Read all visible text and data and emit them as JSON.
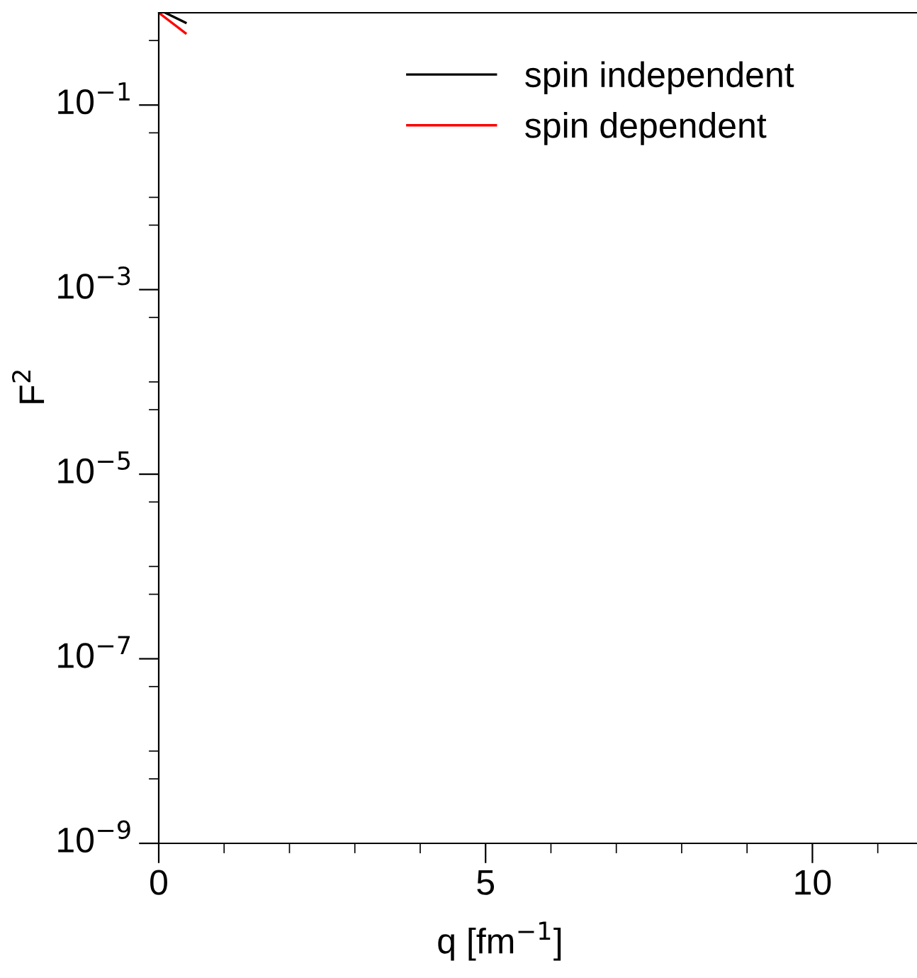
{
  "chart_data": {
    "type": "line",
    "xlabel": "q [fm$^{−1}$]",
    "ylabel": "F$^{2}$",
    "log": "y",
    "legend": "top right",
    "grid": false,
    "xlim": [
      0,
      11.6
    ],
    "ylim": [
      1e-09,
      1
    ],
    "xticks": [
      0,
      {
        "value": 1,
        "label": null
      },
      {
        "value": 2,
        "label": null
      },
      {
        "value": 3,
        "label": null
      },
      {
        "value": 4,
        "label": null
      },
      5,
      {
        "value": 6,
        "label": null
      },
      {
        "value": 7,
        "label": null
      },
      {
        "value": 8,
        "label": null
      },
      {
        "value": 9,
        "label": null
      },
      10,
      {
        "value": 11,
        "label": null
      }
    ],
    "yticks": [
      {
        "value": 1e-09,
        "label": "10$^{−9}$"
      },
      {
        "value": 5e-09,
        "label": null
      },
      {
        "value": 1e-08,
        "label": null
      },
      {
        "value": 5e-08,
        "label": null
      },
      {
        "value": 1e-07,
        "label": "10$^{−7}$"
      },
      {
        "value": 5e-07,
        "label": null
      },
      {
        "value": 1e-06,
        "label": null
      },
      {
        "value": 5e-06,
        "label": null
      },
      {
        "value": 1e-05,
        "label": "10$^{−5}$"
      },
      {
        "value": 5e-05,
        "label": null
      },
      {
        "value": 0.0001,
        "label": null
      },
      {
        "value": 0.0005,
        "label": null
      },
      {
        "value": 0.001,
        "label": "10$^{−3}$"
      },
      {
        "value": 0.005,
        "label": null
      },
      {
        "value": 0.01,
        "label": null
      },
      {
        "value": 0.05,
        "label": null
      },
      {
        "value": 0.1,
        "label": "10$^{−1}$"
      },
      {
        "value": 0.5,
        "label": null
      }
    ],
    "series": [
      {
        "name": "spin independent",
        "color": "#000000",
        "x": [
          0.1,
          0.41
        ],
        "values": [
          1.0,
          0.78
        ]
      },
      {
        "name": "spin dependent",
        "color": "#ff0000",
        "x": [
          0.0,
          0.41
        ],
        "values": [
          1.0,
          0.6
        ]
      }
    ]
  }
}
